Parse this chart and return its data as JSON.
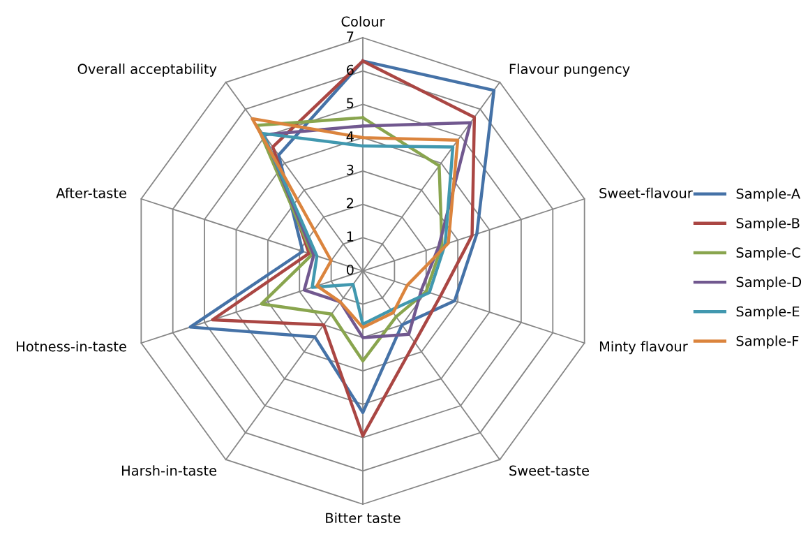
{
  "chart_data": {
    "type": "radar",
    "categories": [
      "Colour",
      "Flavour pungency",
      "Sweet-flavour",
      "Minty flavour",
      "Sweet-taste",
      "Bitter taste",
      "Harsh-in-taste",
      "Hotness-in-taste",
      "After-taste",
      "Overall acceptability"
    ],
    "ylim": [
      0,
      7
    ],
    "yticks": [
      0,
      1,
      2,
      3,
      4,
      5,
      6,
      7
    ],
    "grid": true,
    "legend": "right",
    "line_style": "solid",
    "marker": "none",
    "series": [
      {
        "name": "Sample-A",
        "color": "#4572a7",
        "values": [
          6.3,
          6.7,
          3.6,
          2.9,
          2.0,
          4.25,
          2.45,
          5.45,
          1.9,
          4.3
        ]
      },
      {
        "name": "Sample-B",
        "color": "#aa4643",
        "values": [
          6.3,
          5.7,
          3.45,
          2.45,
          2.65,
          4.95,
          2.0,
          4.75,
          1.7,
          4.6
        ]
      },
      {
        "name": "Sample-C",
        "color": "#89a54e",
        "values": [
          4.6,
          3.9,
          2.5,
          2.0,
          1.7,
          2.7,
          1.6,
          3.2,
          1.6,
          5.4
        ]
      },
      {
        "name": "Sample-D",
        "color": "#71588f",
        "values": [
          4.35,
          5.5,
          2.4,
          1.85,
          2.35,
          2.0,
          1.15,
          1.85,
          1.55,
          5.05
        ]
      },
      {
        "name": "Sample-E",
        "color": "#4198af",
        "values": [
          3.75,
          4.6,
          2.6,
          2.1,
          1.45,
          1.6,
          0.5,
          1.6,
          1.45,
          5.1
        ]
      },
      {
        "name": "Sample-F",
        "color": "#db843d",
        "values": [
          4.0,
          4.85,
          2.7,
          1.4,
          1.55,
          1.7,
          1.15,
          1.45,
          1.0,
          5.65
        ]
      }
    ]
  }
}
